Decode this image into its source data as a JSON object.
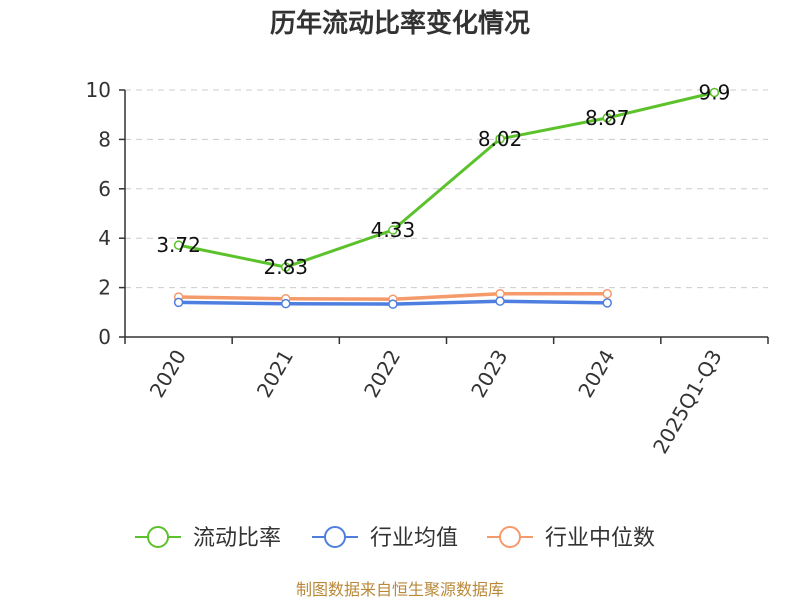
{
  "chart_data": {
    "type": "line",
    "title": "历年流动比率变化情况",
    "categories": [
      "2020",
      "2021",
      "2022",
      "2023",
      "2024",
      "2025Q1-Q3"
    ],
    "ylim": [
      0,
      10
    ],
    "yticks": [
      0,
      2,
      4,
      6,
      8,
      10
    ],
    "grid": true,
    "legend_position": "bottom",
    "series": [
      {
        "name": "流动比率",
        "color": "#5cc22b",
        "values": [
          3.72,
          2.83,
          4.33,
          8.02,
          8.87,
          9.9
        ],
        "labels": [
          "3.72",
          "2.83",
          "4.33",
          "8.02",
          "8.87",
          "9.9"
        ]
      },
      {
        "name": "行业均值",
        "color": "#4e7fe0",
        "values": [
          1.4,
          1.35,
          1.33,
          1.45,
          1.38,
          null
        ]
      },
      {
        "name": "行业中位数",
        "color": "#f59a6b",
        "values": [
          1.62,
          1.55,
          1.53,
          1.75,
          1.75,
          null
        ]
      }
    ]
  },
  "source": "制图数据来自恒生聚源数据库"
}
